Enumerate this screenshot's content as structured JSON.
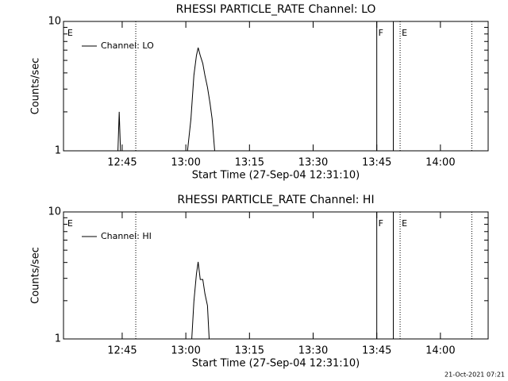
{
  "chart_data": [
    {
      "type": "line",
      "title": "RHESSI PARTICLE_RATE Channel: LO",
      "xlabel": "Start Time (27-Sep-04 12:31:10)",
      "ylabel": "Counts/sec",
      "log_y": true,
      "ylim": [
        1,
        10
      ],
      "yticks": [
        1,
        10
      ],
      "minor_yticks": [
        2,
        3,
        4,
        5,
        6,
        7,
        8,
        9
      ],
      "xlim": [
        751.17,
        851.25
      ],
      "xticks": [
        {
          "value": 765,
          "label": "12:45"
        },
        {
          "value": 780,
          "label": "13:00"
        },
        {
          "value": 795,
          "label": "13:15"
        },
        {
          "value": 810,
          "label": "13:30"
        },
        {
          "value": 825,
          "label": "13:45"
        },
        {
          "value": 840,
          "label": "14:00"
        }
      ],
      "legend": "upper left",
      "series": [
        {
          "name": "Channel: LO",
          "color": "#000000",
          "x": [
            764.0,
            764.3,
            764.6,
            null,
            780.4,
            781.2,
            781.9,
            782.5,
            782.9,
            783.4,
            784.0,
            784.5,
            785.1,
            785.7,
            786.2,
            786.8
          ],
          "values": [
            1,
            2,
            1,
            null,
            1,
            1.76,
            3.83,
            5.45,
            6.27,
            5.45,
            4.73,
            3.83,
            3.1,
            2.33,
            1.76,
            1
          ]
        }
      ],
      "events": [
        {
          "x": 751.7,
          "label": "E"
        },
        {
          "x": 768.2,
          "style": "dotted"
        },
        {
          "x": 825,
          "style": "solid",
          "label": "F"
        },
        {
          "x": 828.9,
          "style": "solid"
        },
        {
          "x": 830.5,
          "style": "dotted",
          "label": "E"
        },
        {
          "x": 847.4,
          "style": "dotted"
        }
      ]
    },
    {
      "type": "line",
      "title": "RHESSI PARTICLE_RATE Channel: HI",
      "xlabel": "Start Time (27-Sep-04 12:31:10)",
      "ylabel": "Counts/sec",
      "log_y": true,
      "ylim": [
        1,
        10
      ],
      "yticks": [
        1,
        10
      ],
      "minor_yticks": [
        2,
        3,
        4,
        5,
        6,
        7,
        8,
        9
      ],
      "xlim": [
        751.17,
        851.25
      ],
      "xticks": [
        {
          "value": 765,
          "label": "12:45"
        },
        {
          "value": 780,
          "label": "13:00"
        },
        {
          "value": 795,
          "label": "13:15"
        },
        {
          "value": 810,
          "label": "13:30"
        },
        {
          "value": 825,
          "label": "13:45"
        },
        {
          "value": 840,
          "label": "14:00"
        }
      ],
      "legend": "upper left",
      "series": [
        {
          "name": "Channel: HI",
          "color": "#000000",
          "x": [
            781.4,
            781.9,
            782.5,
            782.9,
            783.4,
            784.0,
            784.5,
            785.1,
            785.5
          ],
          "values": [
            1,
            1.97,
            3.25,
            4.04,
            2.94,
            2.94,
            2.27,
            1.83,
            1
          ]
        }
      ],
      "events": [
        {
          "x": 751.7,
          "label": "E"
        },
        {
          "x": 768.2,
          "style": "dotted"
        },
        {
          "x": 825,
          "style": "solid",
          "label": "F"
        },
        {
          "x": 828.9,
          "style": "solid"
        },
        {
          "x": 830.5,
          "style": "dotted",
          "label": "E"
        },
        {
          "x": 847.4,
          "style": "dotted"
        }
      ]
    }
  ],
  "timestamp": "21-Oct-2021 07:21"
}
